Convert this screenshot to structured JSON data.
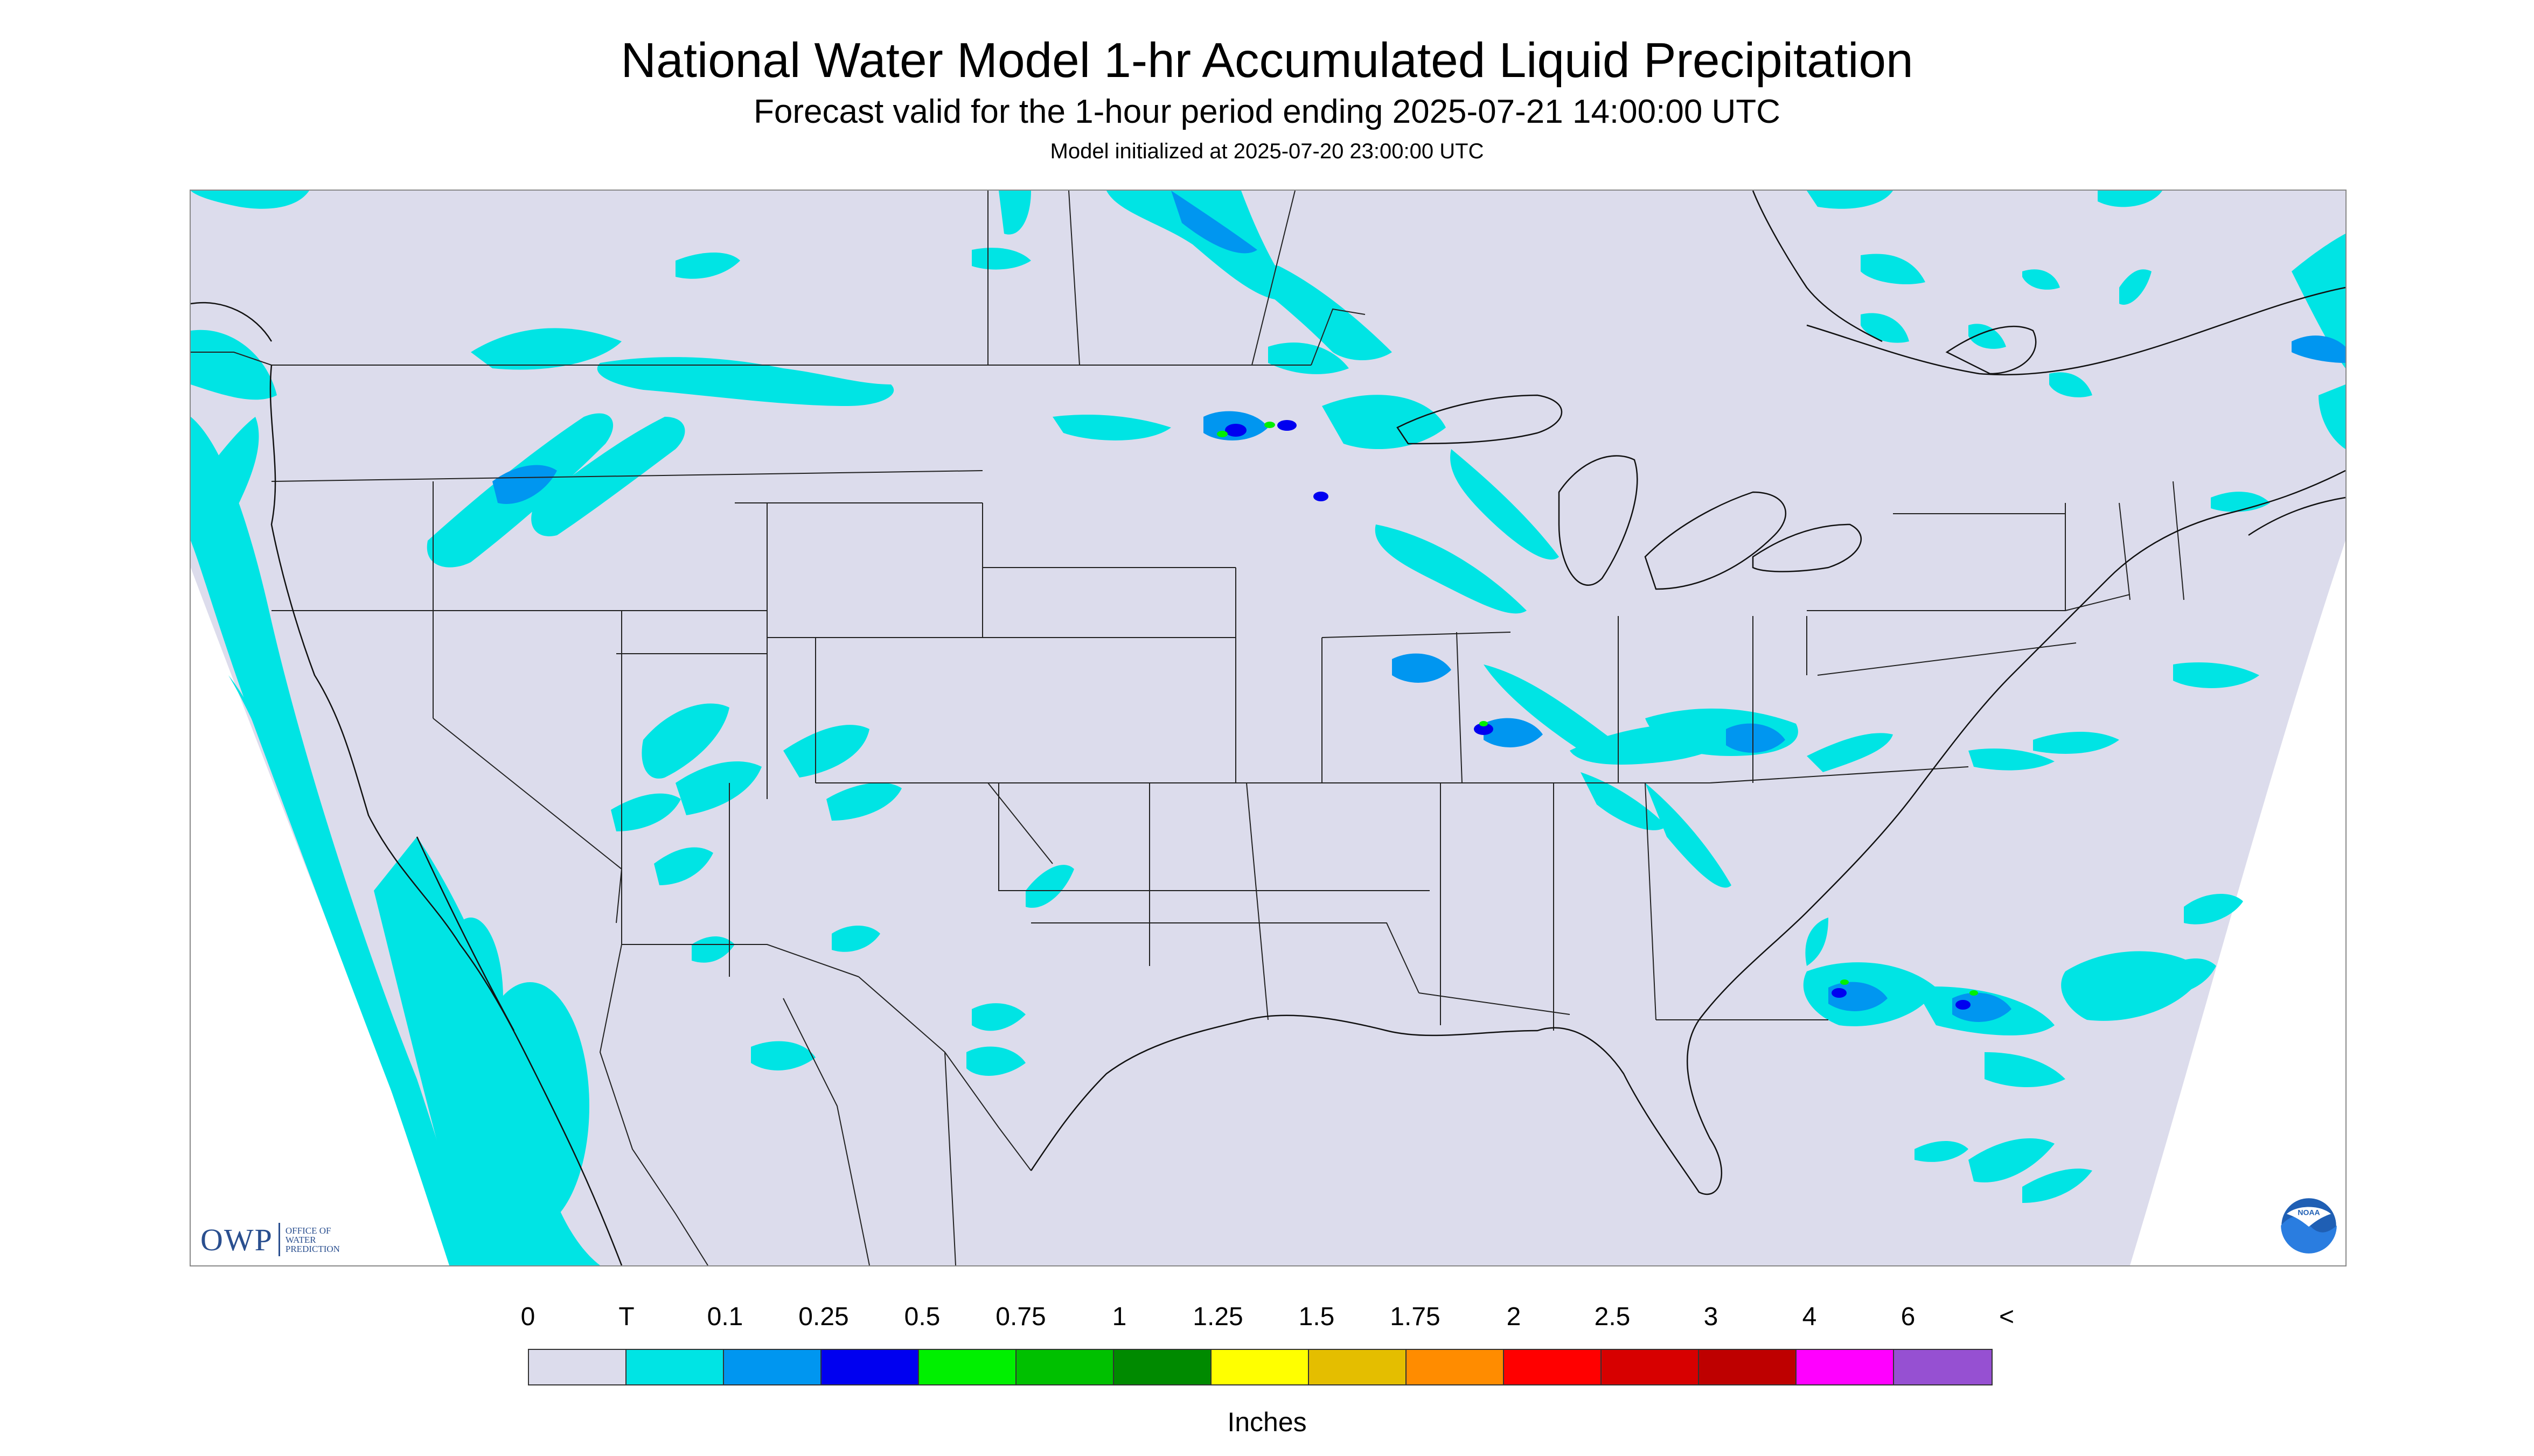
{
  "header": {
    "title": "National Water Model 1-hr Accumulated Liquid Precipitation",
    "subtitle": "Forecast valid for the 1-hour period ending 2025-07-21 14:00:00 UTC",
    "init": "Model initialized at 2025-07-20 23:00:00 UTC"
  },
  "logos": {
    "owp_text": "OWP",
    "owp_sub_1": "OFFICE OF",
    "owp_sub_2": "WATER",
    "owp_sub_3": "PREDICTION",
    "noaa_text": "NOAA"
  },
  "legend": {
    "labels": [
      "0",
      "T",
      "0.1",
      "0.25",
      "0.5",
      "0.75",
      "1",
      "1.25",
      "1.5",
      "1.75",
      "2",
      "2.5",
      "3",
      "4",
      "6",
      "<"
    ],
    "colors": [
      "#dcdcec",
      "#00e4e4",
      "#0096f0",
      "#0000f0",
      "#00f000",
      "#00c000",
      "#008a00",
      "#ffff00",
      "#e4be00",
      "#ff8c00",
      "#ff0000",
      "#d70000",
      "#be0000",
      "#ff00ff",
      "#9650d2"
    ],
    "units": "Inches"
  },
  "map_colors": {
    "background": "#dcdcec",
    "trace": "#00e4e4",
    "light": "#0096f0",
    "moderate": "#0000f0",
    "green": "#00f000",
    "boundary": "#222222"
  }
}
